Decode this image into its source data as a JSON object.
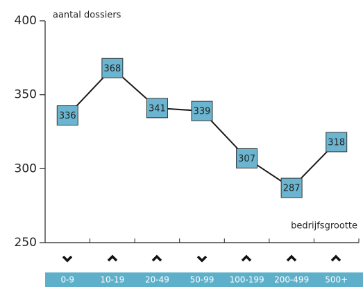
{
  "chart_data": {
    "type": "line",
    "y_label": "aantal dossiers",
    "x_label": "bedrijfsgrootte",
    "categories": [
      "0-9",
      "10-19",
      "20-49",
      "50-99",
      "100-199",
      "200-499",
      "500+"
    ],
    "series": [
      {
        "name": "aantal dossiers",
        "color": "#6bb5d0",
        "values": [
          336,
          368,
          341,
          339,
          307,
          287,
          318
        ]
      }
    ],
    "ylim": [
      250,
      400
    ],
    "yticks": [
      250,
      300,
      350,
      400
    ],
    "grid": false
  }
}
